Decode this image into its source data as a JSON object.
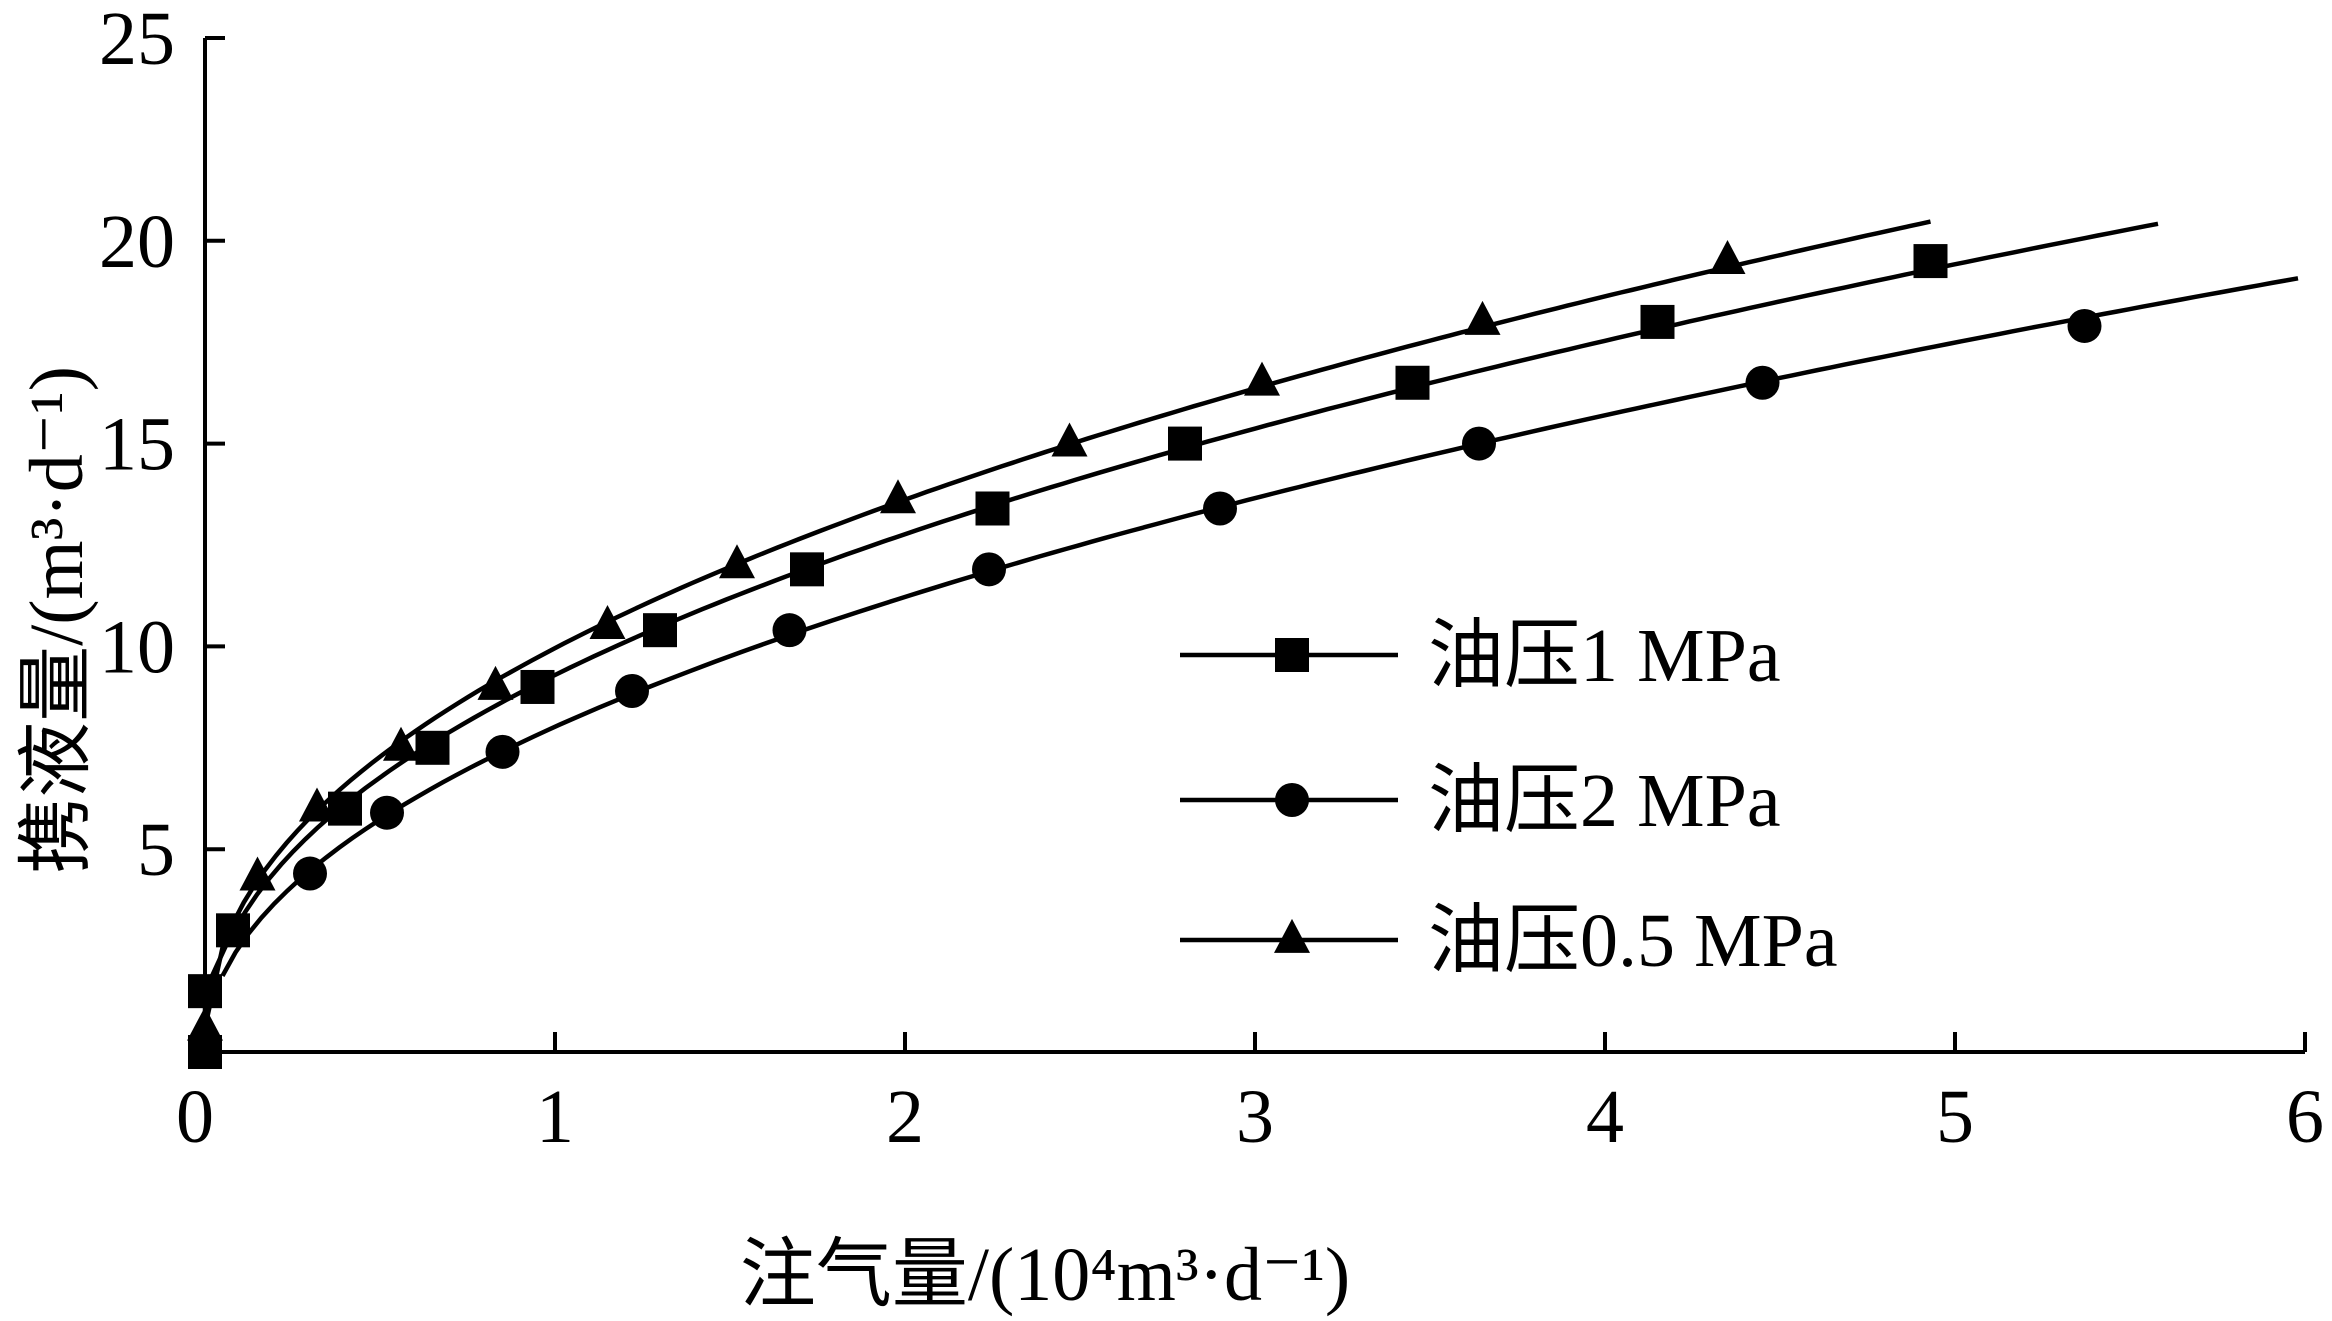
{
  "chart_data": {
    "type": "line",
    "title": "",
    "xlabel": "注气量/(10⁴m³·d⁻¹)",
    "ylabel": "携液量/(m³·d⁻¹)",
    "xlim": [
      0,
      6
    ],
    "ylim": [
      0,
      25
    ],
    "x_ticks": [
      "0",
      "1",
      "2",
      "3",
      "4",
      "5",
      "6"
    ],
    "y_ticks": [
      "5",
      "10",
      "15",
      "20",
      "25"
    ],
    "grid": false,
    "legend_position": "right-center",
    "series": [
      {
        "name": "油压1 MPa",
        "marker": "square",
        "curve_end_x": 5.58,
        "points": [
          {
            "x": 0.0,
            "y": 0.0
          },
          {
            "x": 0.0,
            "y": 1.5
          },
          {
            "x": 0.08,
            "y": 3.0
          },
          {
            "x": 0.4,
            "y": 6.0
          },
          {
            "x": 0.65,
            "y": 7.5
          },
          {
            "x": 0.95,
            "y": 9.0
          },
          {
            "x": 1.3,
            "y": 10.4
          },
          {
            "x": 1.72,
            "y": 11.9
          },
          {
            "x": 2.25,
            "y": 13.4
          },
          {
            "x": 2.8,
            "y": 15.0
          },
          {
            "x": 3.45,
            "y": 16.5
          },
          {
            "x": 4.15,
            "y": 18.0
          },
          {
            "x": 4.93,
            "y": 19.5
          }
        ]
      },
      {
        "name": "油压2 MPa",
        "marker": "circle",
        "curve_end_x": 5.98,
        "points": [
          {
            "x": 0.3,
            "y": 4.4
          },
          {
            "x": 0.52,
            "y": 5.9
          },
          {
            "x": 0.85,
            "y": 7.4
          },
          {
            "x": 1.22,
            "y": 8.9
          },
          {
            "x": 1.67,
            "y": 10.4
          },
          {
            "x": 2.24,
            "y": 11.9
          },
          {
            "x": 2.9,
            "y": 13.4
          },
          {
            "x": 3.64,
            "y": 15.0
          },
          {
            "x": 4.45,
            "y": 16.5
          },
          {
            "x": 5.37,
            "y": 17.9
          }
        ]
      },
      {
        "name": "油压0.5 MPa",
        "marker": "triangle",
        "curve_end_x": 4.93,
        "points": [
          {
            "x": 0.0,
            "y": 0.6
          },
          {
            "x": 0.15,
            "y": 4.3
          },
          {
            "x": 0.32,
            "y": 6.0
          },
          {
            "x": 0.56,
            "y": 7.5
          },
          {
            "x": 0.83,
            "y": 9.0
          },
          {
            "x": 1.15,
            "y": 10.5
          },
          {
            "x": 1.52,
            "y": 12.0
          },
          {
            "x": 1.98,
            "y": 13.6
          },
          {
            "x": 2.47,
            "y": 15.0
          },
          {
            "x": 3.02,
            "y": 16.5
          },
          {
            "x": 3.65,
            "y": 18.0
          },
          {
            "x": 4.35,
            "y": 19.5
          }
        ]
      }
    ]
  }
}
